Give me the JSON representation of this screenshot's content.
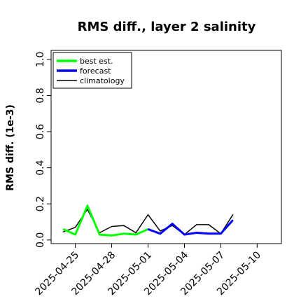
{
  "chart_data": {
    "type": "line",
    "title": "RMS diff., layer 2 salinity",
    "xlabel": "",
    "ylabel": "RMS diff. (1e-3)",
    "ylim": [
      -0.02,
      1.05
    ],
    "xlim": [
      "2025-04-23",
      "2025-05-12"
    ],
    "yticks": [
      0.0,
      0.2,
      0.4,
      0.6,
      0.8,
      1.0
    ],
    "ytick_labels": [
      "0.0",
      "0.2",
      "0.4",
      "0.6",
      "0.8",
      "1.0"
    ],
    "xticks": [
      "2025-04-25",
      "2025-04-28",
      "2025-05-01",
      "2025-05-04",
      "2025-05-07",
      "2025-05-10"
    ],
    "xtick_labels": [
      "2025-04-25",
      "2025-04-28",
      "2025-05-01",
      "2025-05-04",
      "2025-05-07",
      "2025-05-10"
    ],
    "highlight_tick": "2025-05-01",
    "highlight_color": "#228b22",
    "grid": false,
    "legend_position": "top-left",
    "series": [
      {
        "name": "best est.",
        "color": "#00ff00",
        "x": [
          "2025-04-24",
          "2025-04-25",
          "2025-04-26",
          "2025-04-27",
          "2025-04-28",
          "2025-04-29",
          "2025-04-30",
          "2025-05-01"
        ],
        "values": [
          0.06,
          0.03,
          0.19,
          0.03,
          0.025,
          0.035,
          0.03,
          0.06
        ]
      },
      {
        "name": "forecast",
        "color": "#0000ff",
        "x": [
          "2025-05-01",
          "2025-05-02",
          "2025-05-03",
          "2025-05-04",
          "2025-05-05",
          "2025-05-06",
          "2025-05-07",
          "2025-05-08"
        ],
        "values": [
          0.06,
          0.035,
          0.09,
          0.03,
          0.04,
          0.035,
          0.035,
          0.11
        ]
      },
      {
        "name": "climatology",
        "color": "#000000",
        "x": [
          "2025-04-24",
          "2025-04-25",
          "2025-04-26",
          "2025-04-27",
          "2025-04-28",
          "2025-04-29",
          "2025-04-30",
          "2025-05-01",
          "2025-05-02",
          "2025-05-03",
          "2025-05-04",
          "2025-05-05",
          "2025-05-06",
          "2025-05-07",
          "2025-05-08"
        ],
        "values": [
          0.045,
          0.07,
          0.17,
          0.04,
          0.075,
          0.08,
          0.04,
          0.14,
          0.05,
          0.08,
          0.03,
          0.085,
          0.085,
          0.035,
          0.14
        ]
      }
    ]
  }
}
